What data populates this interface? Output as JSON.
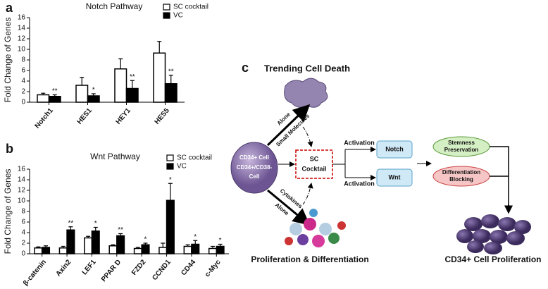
{
  "chart_data": [
    {
      "type": "bar",
      "panel_label": "a",
      "title": "Notch Pathway",
      "y_label": "Fold Change of Genes",
      "categories": [
        "Notch1",
        "HES1",
        "HEY1",
        "HES5"
      ],
      "series": [
        {
          "name": "SC cocktail",
          "color": "#ffffff",
          "values": [
            1.4,
            3.2,
            6.3,
            9.3
          ],
          "errors": [
            0.3,
            1.5,
            1.9,
            2.2
          ]
        },
        {
          "name": "VC",
          "color": "#000000",
          "values": [
            1.1,
            1.2,
            2.6,
            3.5
          ],
          "errors": [
            0.3,
            0.4,
            1.5,
            1.6
          ],
          "significance": [
            "**",
            "*",
            "**",
            "**"
          ]
        }
      ],
      "ylim": [
        0,
        16
      ],
      "yticks": [
        0,
        2,
        4,
        6,
        8,
        10,
        12,
        14,
        16
      ]
    },
    {
      "type": "bar",
      "panel_label": "b",
      "title": "Wnt Pathway",
      "y_label": "Fold Change of Genes",
      "categories": [
        "β-catenin",
        "Axin2",
        "LEF1",
        "PPAR D",
        "FZD2",
        "CCND1",
        "CD44",
        "c-Myc"
      ],
      "series": [
        {
          "name": "SC cocktail",
          "color": "#ffffff",
          "values": [
            1.1,
            1.1,
            3.0,
            1.5,
            1.0,
            1.2,
            1.4,
            1.0
          ],
          "errors": [
            0.2,
            0.3,
            0.3,
            0.2,
            0.2,
            0.8,
            0.3,
            0.4
          ]
        },
        {
          "name": "VC",
          "color": "#000000",
          "values": [
            1.2,
            4.5,
            4.3,
            3.4,
            1.7,
            10.1,
            1.8,
            1.4
          ],
          "errors": [
            0.3,
            0.6,
            0.7,
            0.4,
            0.3,
            3.2,
            0.7,
            0.4
          ],
          "significance": [
            null,
            "**",
            "*",
            "**",
            "*",
            "*",
            "*",
            "*"
          ]
        }
      ],
      "ylim": [
        0,
        16
      ],
      "yticks": [
        0,
        2,
        4,
        6,
        8,
        10,
        12,
        14,
        16
      ]
    }
  ],
  "diagram": {
    "panel_label": "c",
    "top_label": "Trending Cell Death",
    "cell": [
      "CD34+ Cell",
      "CD34+/CD38-",
      "Cell"
    ],
    "upper_arrow": [
      "Alone",
      "Small Molecules"
    ],
    "lower_arrow": [
      "Cytokines",
      "Alone"
    ],
    "cocktail": [
      "SC",
      "Cocktail"
    ],
    "activation_top": "Activation",
    "activation_bottom": "Activation",
    "notch": "Notch",
    "wnt": "Wnt",
    "stemness": [
      "Stemness",
      "Preservation"
    ],
    "differentiation": [
      "Differentiation",
      "Blocking"
    ],
    "bottom_left": "Proliferation & Differentiation",
    "bottom_right": "CD34+ Cell Proliferation"
  }
}
